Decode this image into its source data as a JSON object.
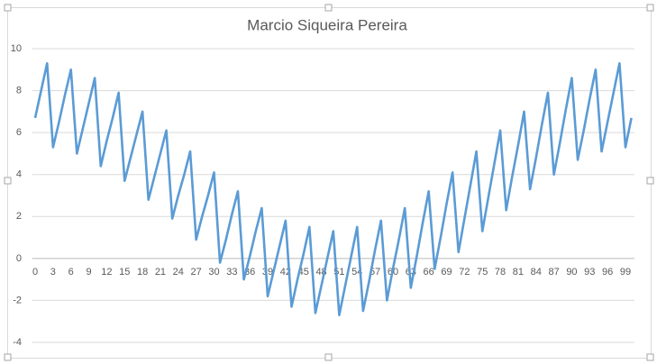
{
  "chart_data": {
    "type": "line",
    "title": "Marcio Siqueira Pereira",
    "categories": [
      0,
      null,
      null,
      3,
      null,
      null,
      6,
      null,
      null,
      9,
      null,
      null,
      12,
      null,
      null,
      15,
      null,
      null,
      18,
      null,
      null,
      21,
      null,
      null,
      24,
      null,
      null,
      27,
      null,
      null,
      30,
      null,
      null,
      33,
      null,
      null,
      36,
      null,
      null,
      39,
      null,
      null,
      42,
      null,
      null,
      45,
      null,
      null,
      48,
      null,
      null,
      51,
      null,
      null,
      54,
      null,
      null,
      57,
      null,
      null,
      60,
      null,
      null,
      63,
      null,
      null,
      66,
      null,
      null,
      69,
      null,
      null,
      72,
      null,
      null,
      75,
      null,
      null,
      78,
      null,
      null,
      81,
      null,
      null,
      84,
      null,
      null,
      87,
      null,
      null,
      90,
      null,
      null,
      93,
      null,
      null,
      96,
      null,
      null,
      99,
      null
    ],
    "series": [
      {
        "color": "#5b9bd5",
        "values": [
          6.7,
          8.0,
          9.3,
          5.3,
          6.5,
          7.8,
          9.0,
          5.0,
          6.2,
          7.4,
          8.6,
          4.4,
          5.6,
          6.7,
          7.9,
          3.7,
          4.8,
          5.9,
          7.0,
          2.8,
          3.9,
          5.0,
          6.1,
          1.9,
          3.0,
          4.0,
          5.1,
          0.9,
          2.0,
          3.0,
          4.1,
          -0.2,
          0.9,
          2.1,
          3.2,
          -1.0,
          0.1,
          1.3,
          2.4,
          -1.8,
          -0.6,
          0.6,
          1.8,
          -2.3,
          -1.0,
          0.2,
          1.5,
          -2.6,
          -1.3,
          0.0,
          1.3,
          -2.7,
          -1.3,
          0.1,
          1.5,
          -2.5,
          -1.1,
          0.4,
          1.8,
          -2.0,
          -0.5,
          0.9,
          2.4,
          -1.4,
          0.1,
          1.7,
          3.2,
          -0.5,
          1.0,
          2.6,
          4.1,
          0.3,
          1.9,
          3.5,
          5.1,
          1.3,
          2.9,
          4.5,
          6.1,
          2.3,
          3.9,
          5.4,
          7.0,
          3.3,
          4.8,
          6.4,
          7.9,
          4.0,
          5.5,
          7.1,
          8.6,
          4.7,
          6.1,
          7.6,
          9.0,
          5.1,
          6.5,
          7.9,
          9.3,
          5.3,
          6.7
        ]
      }
    ],
    "ylim": [
      -4,
      10
    ],
    "yticks": [
      -4,
      -2,
      0,
      2,
      4,
      6,
      8,
      10
    ],
    "grid": true
  }
}
